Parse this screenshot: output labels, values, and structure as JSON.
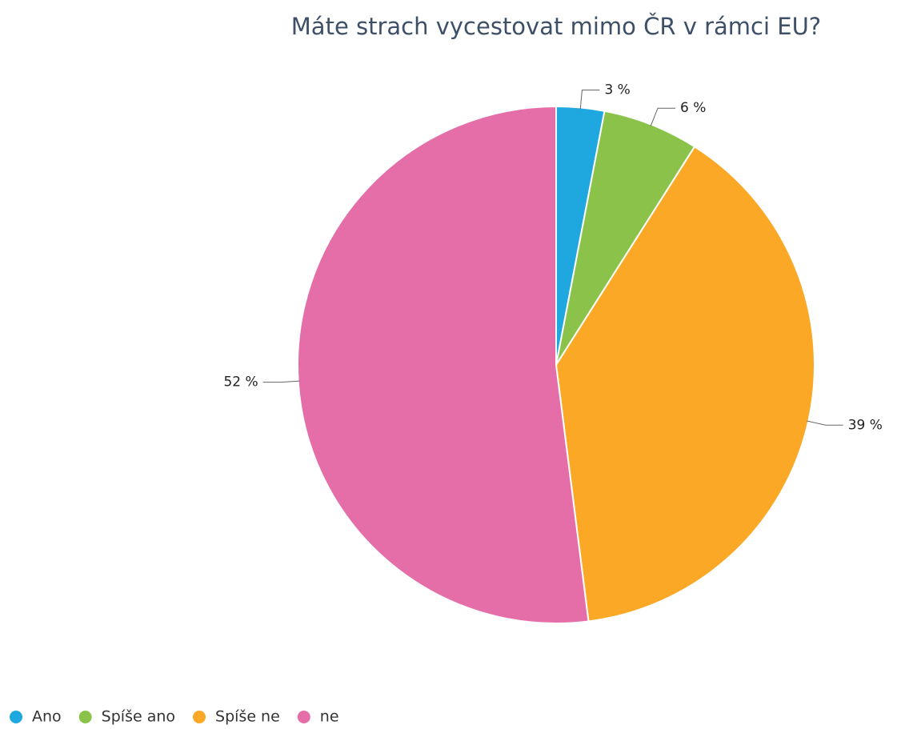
{
  "chart_data": {
    "type": "pie",
    "title": "Máte strach vycestovat mimo ČR v rámci EU?",
    "categories": [
      "Ano",
      "Spíše ano",
      "Spíše ne",
      "ne"
    ],
    "values": [
      3,
      6,
      39,
      52
    ],
    "value_labels": [
      "3 %",
      "6 %",
      "39 %",
      "52 %"
    ],
    "colors": [
      "#1fa8e0",
      "#8bc34a",
      "#fba826",
      "#e56ea9"
    ],
    "legend": "bottom-left"
  }
}
